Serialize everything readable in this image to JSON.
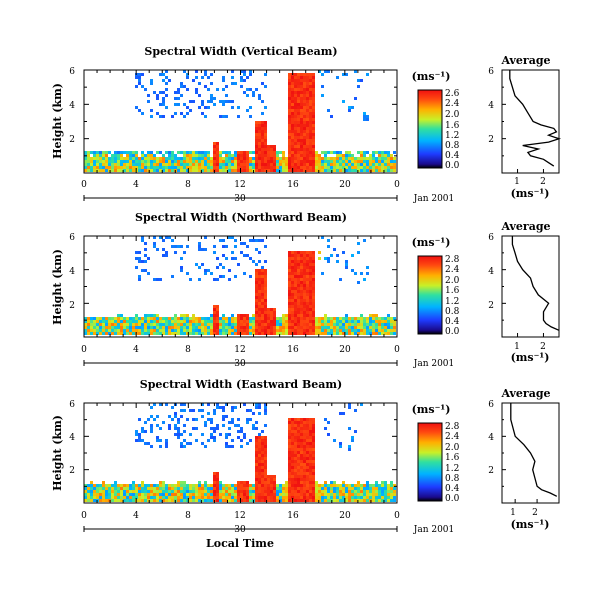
{
  "figure": {
    "x_label": "Local Time",
    "date_label": "Jan 2001",
    "date_day": "30"
  },
  "chart_data": [
    {
      "type": "heatmap",
      "title": "Spectral Width (Vertical Beam)",
      "xlabel": "Local Time",
      "ylabel": "Height (km)",
      "xlim": [
        0,
        24
      ],
      "ylim": [
        0,
        6
      ],
      "xticks": [
        "0",
        "4",
        "8",
        "12",
        "16",
        "20",
        "0"
      ],
      "yticks": [
        "2",
        "4",
        "6"
      ],
      "colorbar": {
        "label": "(ms⁻¹)",
        "range": [
          0.0,
          2.6
        ],
        "ticks": [
          "2.6",
          "2.4",
          "2.0",
          "1.6",
          "1.2",
          "0.8",
          "0.4",
          "0.0"
        ]
      },
      "profile": {
        "title": "Average",
        "xlabel": "(ms⁻¹)",
        "xticks": [
          "1",
          "2"
        ],
        "yticks": [
          "2",
          "4",
          "6"
        ],
        "xlim": [
          0.4,
          2.6
        ],
        "height_km": [
          0.4,
          0.6,
          0.8,
          1.0,
          1.2,
          1.4,
          1.6,
          1.8,
          2.0,
          2.2,
          2.4,
          2.6,
          2.8,
          3.0,
          3.5,
          4.0,
          4.5,
          5.0,
          5.5,
          6.0
        ],
        "width": [
          2.4,
          2.2,
          2.0,
          1.5,
          1.4,
          1.8,
          1.2,
          2.2,
          2.6,
          2.2,
          2.5,
          2.4,
          1.9,
          1.6,
          1.4,
          1.2,
          0.9,
          0.8,
          0.7,
          0.7
        ]
      }
    },
    {
      "type": "heatmap",
      "title": "Spectral Width (Northward Beam)",
      "xlabel": "Local Time",
      "ylabel": "Height (km)",
      "xlim": [
        0,
        24
      ],
      "ylim": [
        0,
        6
      ],
      "xticks": [
        "0",
        "4",
        "8",
        "12",
        "16",
        "20",
        "0"
      ],
      "yticks": [
        "2",
        "4",
        "6"
      ],
      "colorbar": {
        "label": "(ms⁻¹)",
        "range": [
          0.0,
          2.8
        ],
        "ticks": [
          "2.8",
          "2.4",
          "2.0",
          "1.6",
          "1.2",
          "0.8",
          "0.4",
          "0.0"
        ]
      },
      "profile": {
        "title": "Average",
        "xlabel": "(ms⁻¹)",
        "xticks": [
          "1",
          "2"
        ],
        "yticks": [
          "2",
          "4",
          "6"
        ],
        "xlim": [
          0.4,
          2.6
        ],
        "height_km": [
          0.4,
          0.6,
          0.8,
          1.0,
          1.5,
          2.0,
          2.5,
          3.0,
          3.5,
          4.0,
          4.5,
          5.0,
          5.5,
          6.0
        ],
        "width": [
          2.6,
          2.3,
          2.1,
          2.0,
          2.0,
          2.2,
          1.8,
          1.6,
          1.5,
          1.2,
          1.0,
          0.9,
          0.8,
          0.8
        ]
      }
    },
    {
      "type": "heatmap",
      "title": "Spectral Width (Eastward Beam)",
      "xlabel": "Local Time",
      "ylabel": "Height (km)",
      "xlim": [
        0,
        24
      ],
      "ylim": [
        0,
        6
      ],
      "xticks": [
        "0",
        "4",
        "8",
        "12",
        "16",
        "20",
        "0"
      ],
      "yticks": [
        "2",
        "4",
        "6"
      ],
      "colorbar": {
        "label": "(ms⁻¹)",
        "range": [
          0.0,
          2.8
        ],
        "ticks": [
          "2.8",
          "2.4",
          "2.0",
          "1.6",
          "1.2",
          "0.8",
          "0.4",
          "0.0"
        ]
      },
      "profile": {
        "title": "Average",
        "xlabel": "(ms⁻¹)",
        "xticks": [
          "1",
          "2"
        ],
        "yticks": [
          "2",
          "4",
          "6"
        ],
        "xlim": [
          0.4,
          3.0
        ],
        "height_km": [
          0.4,
          0.6,
          0.8,
          1.0,
          1.5,
          2.0,
          2.5,
          3.0,
          3.5,
          4.0,
          4.5,
          5.0,
          5.5,
          6.0
        ],
        "width": [
          2.9,
          2.6,
          2.2,
          2.0,
          1.9,
          1.8,
          1.9,
          1.7,
          1.4,
          1.0,
          0.9,
          0.8,
          0.8,
          0.8
        ]
      }
    }
  ]
}
